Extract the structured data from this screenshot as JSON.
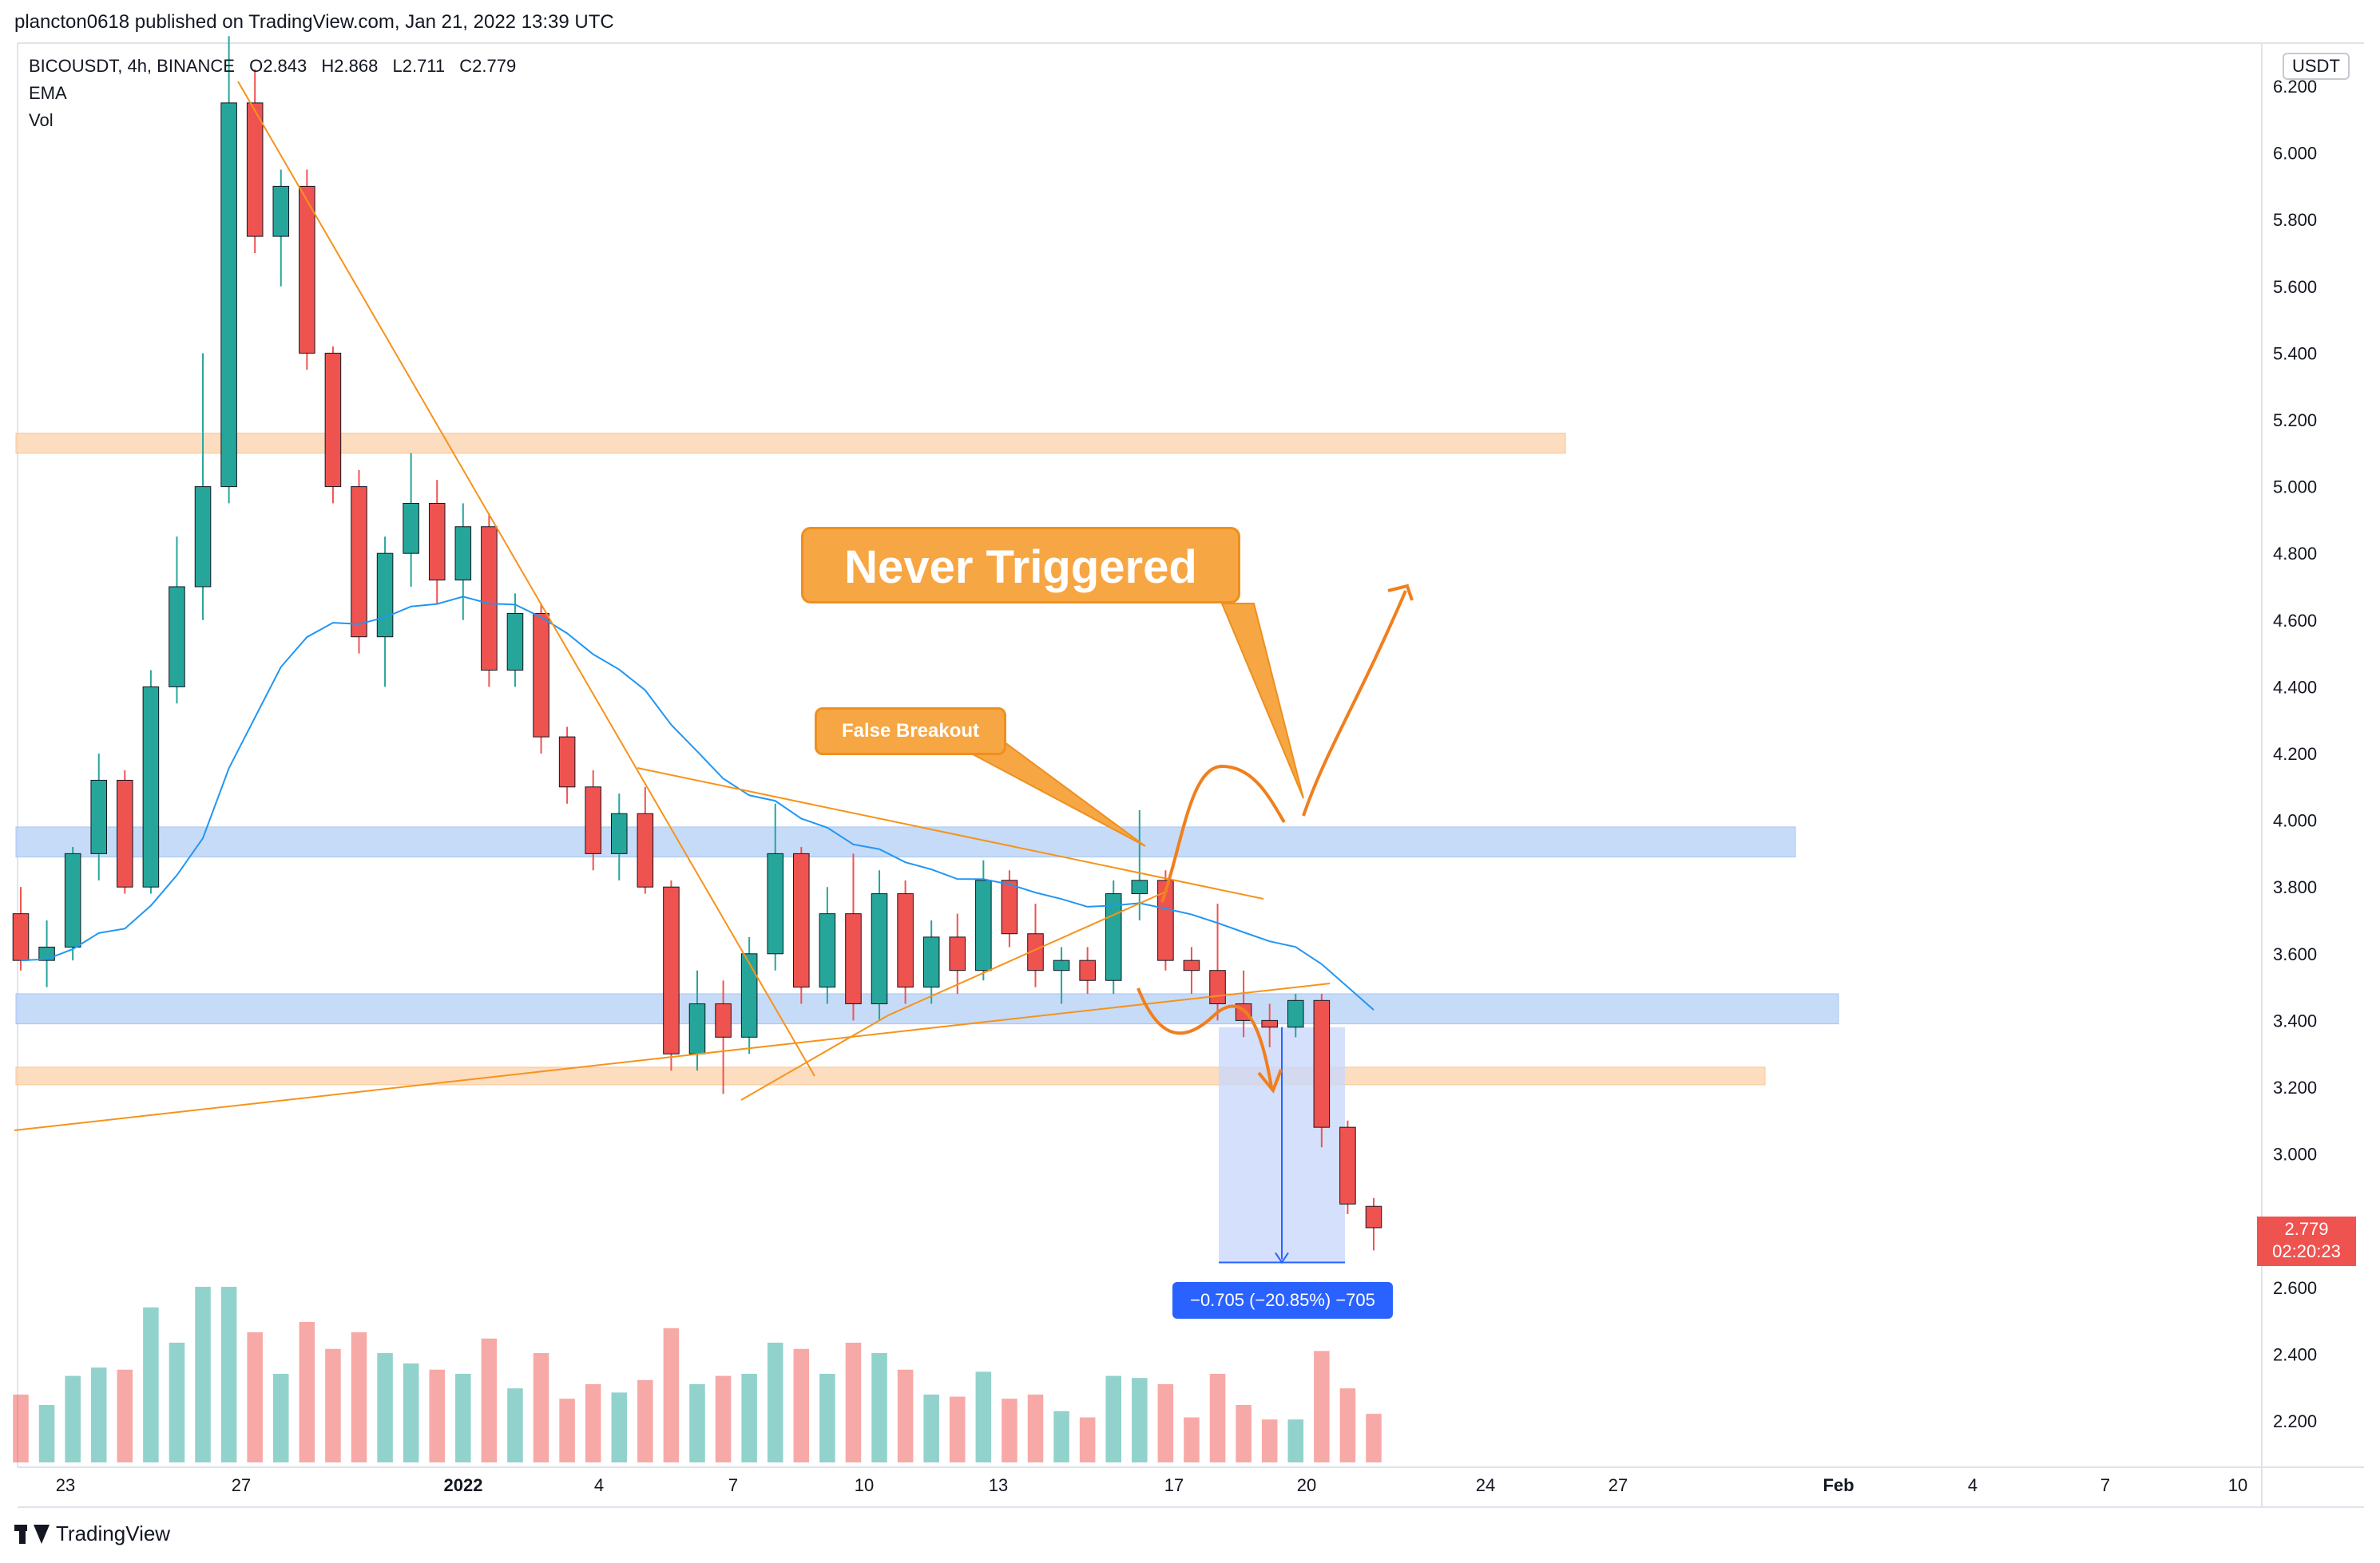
{
  "header": {
    "publisher_line": "plancton0618 published on TradingView.com, Jan 21, 2022 13:39 UTC"
  },
  "legend": {
    "symbol_line": "BICOUSDT, 4h, BINANCE",
    "ohlc": [
      {
        "key": "O",
        "value": "2.843"
      },
      {
        "key": "H",
        "value": "2.868"
      },
      {
        "key": "L",
        "value": "2.711"
      },
      {
        "key": "C",
        "value": "2.779"
      }
    ],
    "indicators": [
      "EMA",
      "Vol"
    ]
  },
  "price_axis": {
    "currency": "USDT",
    "ticks": [
      "6.200",
      "6.000",
      "5.800",
      "5.600",
      "5.400",
      "5.200",
      "5.000",
      "4.800",
      "4.600",
      "4.400",
      "4.200",
      "4.000",
      "3.800",
      "3.600",
      "3.400",
      "3.200",
      "3.000",
      "2.600",
      "2.400",
      "2.200"
    ],
    "last_price": "2.779",
    "countdown": "02:20:23"
  },
  "time_axis": {
    "ticks": [
      "23",
      "27",
      "2022",
      "4",
      "7",
      "10",
      "13",
      "17",
      "20",
      "24",
      "27",
      "Feb",
      "4",
      "7",
      "10"
    ]
  },
  "annotations": {
    "never_triggered": "Never Triggered",
    "false_breakout": "False Breakout",
    "measure": "−0.705 (−20.85%) −705"
  },
  "brand": {
    "name": "TradingView"
  },
  "colors": {
    "up": "#26a69a",
    "down": "#ef5350",
    "ema": "#2196f3",
    "trendline": "#f7931a",
    "resistance_zone": "#fbd7b4",
    "support_zone": "#bcd5f7",
    "measure_fill": "#c9d8fb",
    "measure_line": "#2962ff"
  },
  "chart_data": {
    "type": "candlestick",
    "symbol": "BICOUSDT",
    "interval": "4h",
    "exchange": "BINANCE",
    "y_range": [
      2.1,
      6.3
    ],
    "last": {
      "open": 2.843,
      "high": 2.868,
      "low": 2.711,
      "close": 2.779
    },
    "candles": [
      {
        "date": "Dec 22",
        "open": 3.72,
        "high": 3.8,
        "low": 3.55,
        "close": 3.58
      },
      {
        "date": "Dec 23",
        "open": 3.58,
        "high": 3.7,
        "low": 3.5,
        "close": 3.62
      },
      {
        "date": "Dec 23",
        "open": 3.62,
        "high": 3.92,
        "low": 3.58,
        "close": 3.9
      },
      {
        "date": "Dec 24",
        "open": 3.9,
        "high": 4.2,
        "low": 3.82,
        "close": 4.12
      },
      {
        "date": "Dec 25",
        "open": 4.12,
        "high": 4.15,
        "low": 3.78,
        "close": 3.8
      },
      {
        "date": "Dec 25",
        "open": 3.8,
        "high": 4.45,
        "low": 3.78,
        "close": 4.4
      },
      {
        "date": "Dec 26",
        "open": 4.4,
        "high": 4.85,
        "low": 4.35,
        "close": 4.7
      },
      {
        "date": "Dec 26",
        "open": 4.7,
        "high": 5.4,
        "low": 4.6,
        "close": 5.0
      },
      {
        "date": "Dec 27",
        "open": 5.0,
        "high": 6.35,
        "low": 4.95,
        "close": 6.15
      },
      {
        "date": "Dec 27",
        "open": 6.15,
        "high": 6.25,
        "low": 5.7,
        "close": 5.75
      },
      {
        "date": "Dec 28",
        "open": 5.75,
        "high": 5.95,
        "low": 5.6,
        "close": 5.9
      },
      {
        "date": "Dec 28",
        "open": 5.9,
        "high": 5.95,
        "low": 5.35,
        "close": 5.4
      },
      {
        "date": "Dec 29",
        "open": 5.4,
        "high": 5.42,
        "low": 4.95,
        "close": 5.0
      },
      {
        "date": "Dec 29",
        "open": 5.0,
        "high": 5.05,
        "low": 4.5,
        "close": 4.55
      },
      {
        "date": "Dec 30",
        "open": 4.55,
        "high": 4.85,
        "low": 4.4,
        "close": 4.8
      },
      {
        "date": "Dec 31",
        "open": 4.8,
        "high": 5.1,
        "low": 4.7,
        "close": 4.95
      },
      {
        "date": "Dec 31",
        "open": 4.95,
        "high": 5.02,
        "low": 4.65,
        "close": 4.72
      },
      {
        "date": "Jan 1",
        "open": 4.72,
        "high": 4.95,
        "low": 4.6,
        "close": 4.88
      },
      {
        "date": "Jan 2",
        "open": 4.88,
        "high": 4.92,
        "low": 4.4,
        "close": 4.45
      },
      {
        "date": "Jan 2",
        "open": 4.45,
        "high": 4.68,
        "low": 4.4,
        "close": 4.62
      },
      {
        "date": "Jan 3",
        "open": 4.62,
        "high": 4.65,
        "low": 4.2,
        "close": 4.25
      },
      {
        "date": "Jan 3",
        "open": 4.25,
        "high": 4.28,
        "low": 4.05,
        "close": 4.1
      },
      {
        "date": "Jan 4",
        "open": 4.1,
        "high": 4.15,
        "low": 3.85,
        "close": 3.9
      },
      {
        "date": "Jan 5",
        "open": 3.9,
        "high": 4.08,
        "low": 3.82,
        "close": 4.02
      },
      {
        "date": "Jan 5",
        "open": 4.02,
        "high": 4.1,
        "low": 3.78,
        "close": 3.8
      },
      {
        "date": "Jan 6",
        "open": 3.8,
        "high": 3.82,
        "low": 3.25,
        "close": 3.3
      },
      {
        "date": "Jan 6",
        "open": 3.3,
        "high": 3.55,
        "low": 3.25,
        "close": 3.45
      },
      {
        "date": "Jan 7",
        "open": 3.45,
        "high": 3.52,
        "low": 3.18,
        "close": 3.35
      },
      {
        "date": "Jan 7",
        "open": 3.35,
        "high": 3.65,
        "low": 3.3,
        "close": 3.6
      },
      {
        "date": "Jan 8",
        "open": 3.6,
        "high": 4.05,
        "low": 3.55,
        "close": 3.9
      },
      {
        "date": "Jan 8",
        "open": 3.9,
        "high": 3.92,
        "low": 3.45,
        "close": 3.5
      },
      {
        "date": "Jan 9",
        "open": 3.5,
        "high": 3.8,
        "low": 3.45,
        "close": 3.72
      },
      {
        "date": "Jan 10",
        "open": 3.72,
        "high": 3.9,
        "low": 3.4,
        "close": 3.45
      },
      {
        "date": "Jan 10",
        "open": 3.45,
        "high": 3.85,
        "low": 3.4,
        "close": 3.78
      },
      {
        "date": "Jan 11",
        "open": 3.78,
        "high": 3.82,
        "low": 3.45,
        "close": 3.5
      },
      {
        "date": "Jan 12",
        "open": 3.5,
        "high": 3.7,
        "low": 3.45,
        "close": 3.65
      },
      {
        "date": "Jan 12",
        "open": 3.65,
        "high": 3.72,
        "low": 3.48,
        "close": 3.55
      },
      {
        "date": "Jan 13",
        "open": 3.55,
        "high": 3.88,
        "low": 3.52,
        "close": 3.82
      },
      {
        "date": "Jan 13",
        "open": 3.82,
        "high": 3.85,
        "low": 3.62,
        "close": 3.66
      },
      {
        "date": "Jan 14",
        "open": 3.66,
        "high": 3.75,
        "low": 3.5,
        "close": 3.55
      },
      {
        "date": "Jan 15",
        "open": 3.55,
        "high": 3.62,
        "low": 3.45,
        "close": 3.58
      },
      {
        "date": "Jan 15",
        "open": 3.58,
        "high": 3.62,
        "low": 3.48,
        "close": 3.52
      },
      {
        "date": "Jan 16",
        "open": 3.52,
        "high": 3.82,
        "low": 3.48,
        "close": 3.78
      },
      {
        "date": "Jan 17",
        "open": 3.78,
        "high": 4.03,
        "low": 3.7,
        "close": 3.82
      },
      {
        "date": "Jan 17",
        "open": 3.82,
        "high": 3.85,
        "low": 3.55,
        "close": 3.58
      },
      {
        "date": "Jan 18",
        "open": 3.58,
        "high": 3.62,
        "low": 3.48,
        "close": 3.55
      },
      {
        "date": "Jan 18",
        "open": 3.55,
        "high": 3.75,
        "low": 3.4,
        "close": 3.45
      },
      {
        "date": "Jan 19",
        "open": 3.45,
        "high": 3.55,
        "low": 3.35,
        "close": 3.4
      },
      {
        "date": "Jan 20",
        "open": 3.4,
        "high": 3.45,
        "low": 3.32,
        "close": 3.38
      },
      {
        "date": "Jan 20",
        "open": 3.38,
        "high": 3.48,
        "low": 3.35,
        "close": 3.46
      },
      {
        "date": "Jan 20",
        "open": 3.46,
        "high": 3.48,
        "low": 3.02,
        "close": 3.08
      },
      {
        "date": "Jan 21",
        "open": 3.08,
        "high": 3.1,
        "low": 2.82,
        "close": 2.85
      },
      {
        "date": "Jan 21",
        "open": 2.843,
        "high": 2.868,
        "low": 2.711,
        "close": 2.779
      }
    ],
    "zones": [
      {
        "kind": "resistance",
        "low": 5.1,
        "high": 5.16
      },
      {
        "kind": "support",
        "low": 3.89,
        "high": 3.98
      },
      {
        "kind": "support",
        "low": 3.39,
        "high": 3.48
      },
      {
        "kind": "resistance",
        "low": 3.21,
        "high": 3.26
      }
    ],
    "measure": {
      "from": 3.38,
      "to": 2.675,
      "change": -0.705,
      "percent": -20.85
    }
  }
}
